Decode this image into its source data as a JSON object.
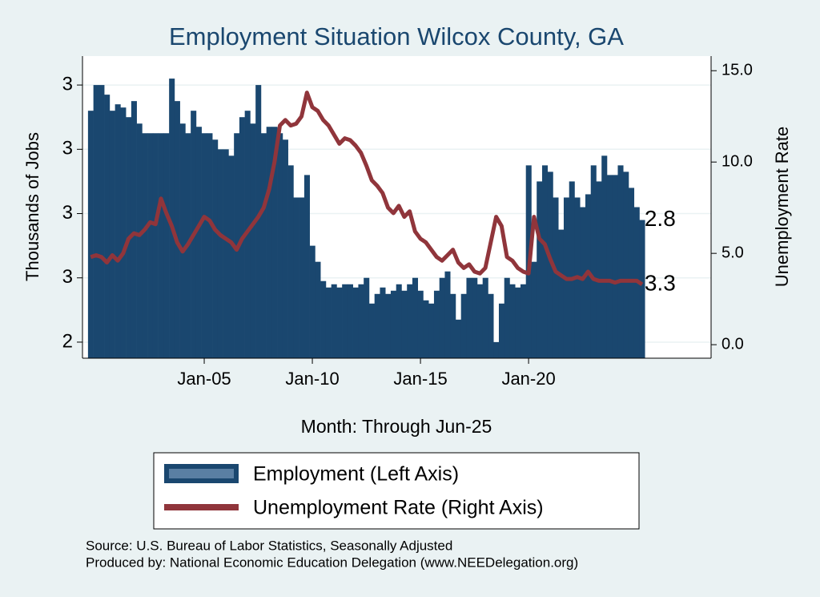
{
  "chart_data": {
    "type": "bar-line",
    "title": "Employment Situation Wilcox  County, GA",
    "x_label": "Month: Through Jun-25",
    "y_label": "Thousands of Jobs",
    "y2_label": "Unemployment Rate",
    "notes": [
      "Source: U.S. Bureau of Labor Statistics, Seasonally Adjusted",
      "Produced by: National Economic Education Delegation (www.NEEDelegation.org)"
    ],
    "x": [
      1999.75,
      2000,
      2000.25,
      2000.5,
      2000.75,
      2001,
      2001.25,
      2001.5,
      2001.75,
      2002,
      2002.25,
      2002.5,
      2002.75,
      2003,
      2003.25,
      2003.5,
      2003.75,
      2004,
      2004.25,
      2004.5,
      2004.75,
      2005,
      2005.25,
      2005.5,
      2005.75,
      2006,
      2006.25,
      2006.5,
      2006.75,
      2007,
      2007.25,
      2007.5,
      2007.75,
      2008,
      2008.25,
      2008.5,
      2008.75,
      2009,
      2009.25,
      2009.5,
      2009.75,
      2010,
      2010.25,
      2010.5,
      2010.75,
      2011,
      2011.25,
      2011.5,
      2011.75,
      2012,
      2012.25,
      2012.5,
      2012.75,
      2013,
      2013.25,
      2013.5,
      2013.75,
      2014,
      2014.25,
      2014.5,
      2014.75,
      2015,
      2015.25,
      2015.5,
      2015.75,
      2016,
      2016.25,
      2016.5,
      2016.75,
      2017,
      2017.25,
      2017.5,
      2017.75,
      2018,
      2018.25,
      2018.5,
      2018.75,
      2019,
      2019.25,
      2019.5,
      2019.75,
      2020,
      2020.25,
      2020.5,
      2020.75,
      2021,
      2021.25,
      2021.5,
      2021.75,
      2022,
      2022.25,
      2022.5,
      2022.75,
      2023,
      2023.25,
      2023.5,
      2023.75,
      2024,
      2024.25,
      2024.5,
      2024.75,
      2025,
      2025.25
    ],
    "series": [
      {
        "name": "Employment (Left Axis)",
        "color": "#1a476f",
        "kind": "bar",
        "values": [
          3.12,
          3.2,
          3.2,
          3.17,
          3.12,
          3.14,
          3.13,
          3.1,
          3.15,
          3.08,
          3.05,
          3.05,
          3.05,
          3.05,
          3.05,
          3.22,
          3.15,
          3.08,
          3.05,
          3.12,
          3.07,
          3.05,
          3.05,
          3.03,
          3.0,
          3.0,
          2.98,
          3.05,
          3.1,
          3.12,
          3.08,
          3.2,
          3.05,
          3.07,
          3.07,
          3.05,
          3.03,
          2.95,
          2.85,
          2.85,
          2.92,
          2.7,
          2.65,
          2.59,
          2.57,
          2.58,
          2.57,
          2.58,
          2.58,
          2.57,
          2.58,
          2.6,
          2.52,
          2.55,
          2.57,
          2.55,
          2.56,
          2.58,
          2.56,
          2.58,
          2.6,
          2.56,
          2.53,
          2.52,
          2.56,
          2.6,
          2.62,
          2.55,
          2.47,
          2.55,
          2.6,
          2.6,
          2.58,
          2.6,
          2.55,
          2.4,
          2.52,
          2.6,
          2.58,
          2.57,
          2.58,
          2.95,
          2.65,
          2.9,
          2.95,
          2.93,
          2.85,
          2.75,
          2.85,
          2.9,
          2.85,
          2.82,
          2.86,
          2.95,
          2.9,
          2.98,
          2.92,
          2.92,
          2.95,
          2.93,
          2.88,
          2.82,
          2.78
        ],
        "value_labels": [
          null,
          null,
          null,
          null,
          null,
          null,
          null,
          null,
          null,
          null,
          null,
          null,
          null,
          null,
          null,
          null,
          null,
          null,
          null,
          null,
          null,
          null,
          null,
          null,
          null,
          null,
          null,
          null,
          null,
          null,
          null,
          null,
          null,
          null,
          null,
          null,
          null,
          null,
          null,
          null,
          null,
          null,
          null,
          null,
          null,
          null,
          null,
          null,
          null,
          null,
          null,
          null,
          null,
          null,
          null,
          null,
          null,
          null,
          null,
          null,
          null,
          null,
          null,
          null,
          null,
          null,
          null,
          null,
          null,
          null,
          null,
          null,
          null,
          null,
          null,
          null,
          null,
          null,
          null,
          null,
          null,
          null,
          null,
          null,
          null,
          null,
          null,
          null,
          null,
          null,
          null,
          null,
          null,
          null,
          null,
          null,
          null,
          null,
          null,
          null,
          null,
          null,
          "2.8"
        ]
      },
      {
        "name": "Unemployment Rate (Right Axis)",
        "color": "#90353b",
        "kind": "line",
        "axis": "y2",
        "values": [
          4.8,
          4.9,
          4.8,
          4.5,
          4.9,
          4.6,
          5.0,
          5.8,
          6.1,
          6.0,
          6.3,
          6.7,
          6.6,
          8.0,
          7.2,
          6.5,
          5.6,
          5.1,
          5.5,
          6.0,
          6.5,
          7.0,
          6.8,
          6.3,
          6.0,
          5.8,
          5.6,
          5.2,
          5.8,
          6.2,
          6.6,
          7.0,
          7.5,
          8.5,
          10.0,
          12.0,
          12.3,
          12.0,
          12.1,
          12.5,
          13.8,
          13.0,
          12.8,
          12.3,
          12.0,
          11.5,
          11.0,
          11.3,
          11.2,
          10.9,
          10.5,
          9.8,
          9.0,
          8.7,
          8.3,
          7.5,
          7.2,
          7.6,
          7.0,
          7.3,
          6.2,
          5.8,
          5.6,
          5.2,
          4.8,
          4.6,
          4.9,
          5.2,
          4.5,
          4.2,
          4.4,
          4.0,
          3.9,
          4.2,
          5.6,
          7.0,
          6.5,
          4.8,
          4.6,
          4.2,
          4.0,
          3.9,
          7.0,
          5.8,
          5.5,
          4.7,
          4.0,
          3.8,
          3.6,
          3.6,
          3.7,
          3.6,
          4.0,
          3.6,
          3.5,
          3.5,
          3.5,
          3.4,
          3.5,
          3.5,
          3.5,
          3.5,
          3.3
        ],
        "value_labels": [
          null,
          null,
          null,
          null,
          null,
          null,
          null,
          null,
          null,
          null,
          null,
          null,
          null,
          null,
          null,
          null,
          null,
          null,
          null,
          null,
          null,
          null,
          null,
          null,
          null,
          null,
          null,
          null,
          null,
          null,
          null,
          null,
          null,
          null,
          null,
          null,
          null,
          null,
          null,
          null,
          null,
          null,
          null,
          null,
          null,
          null,
          null,
          null,
          null,
          null,
          null,
          null,
          null,
          null,
          null,
          null,
          null,
          null,
          null,
          null,
          null,
          null,
          null,
          null,
          null,
          null,
          null,
          null,
          null,
          null,
          null,
          null,
          null,
          null,
          null,
          null,
          null,
          null,
          null,
          null,
          null,
          null,
          null,
          null,
          null,
          null,
          null,
          null,
          null,
          null,
          null,
          null,
          null,
          null,
          null,
          null,
          null,
          null,
          null,
          null,
          null,
          null,
          "3.3"
        ]
      }
    ],
    "xlim": [
      1999.37,
      2028.44
    ],
    "xticks": [
      {
        "value": 2005,
        "label": "Jan-05"
      },
      {
        "value": 2010,
        "label": "Jan-10"
      },
      {
        "value": 2015,
        "label": "Jan-15"
      },
      {
        "value": 2020,
        "label": "Jan-20"
      }
    ],
    "ylim": [
      2.35,
      3.29
    ],
    "yticks": [
      {
        "value": 2.4,
        "label": "2"
      },
      {
        "value": 2.6,
        "label": "3"
      },
      {
        "value": 2.8,
        "label": "3"
      },
      {
        "value": 3.0,
        "label": "3"
      },
      {
        "value": 3.2,
        "label": "3"
      }
    ],
    "y2lim": [
      -0.74,
      15.8
    ],
    "y2ticks": [
      {
        "value": 0,
        "label": "0.0"
      },
      {
        "value": 5,
        "label": "5.0"
      },
      {
        "value": 10,
        "label": "10.0"
      },
      {
        "value": 15,
        "label": "15.0"
      }
    ],
    "grid": true
  }
}
